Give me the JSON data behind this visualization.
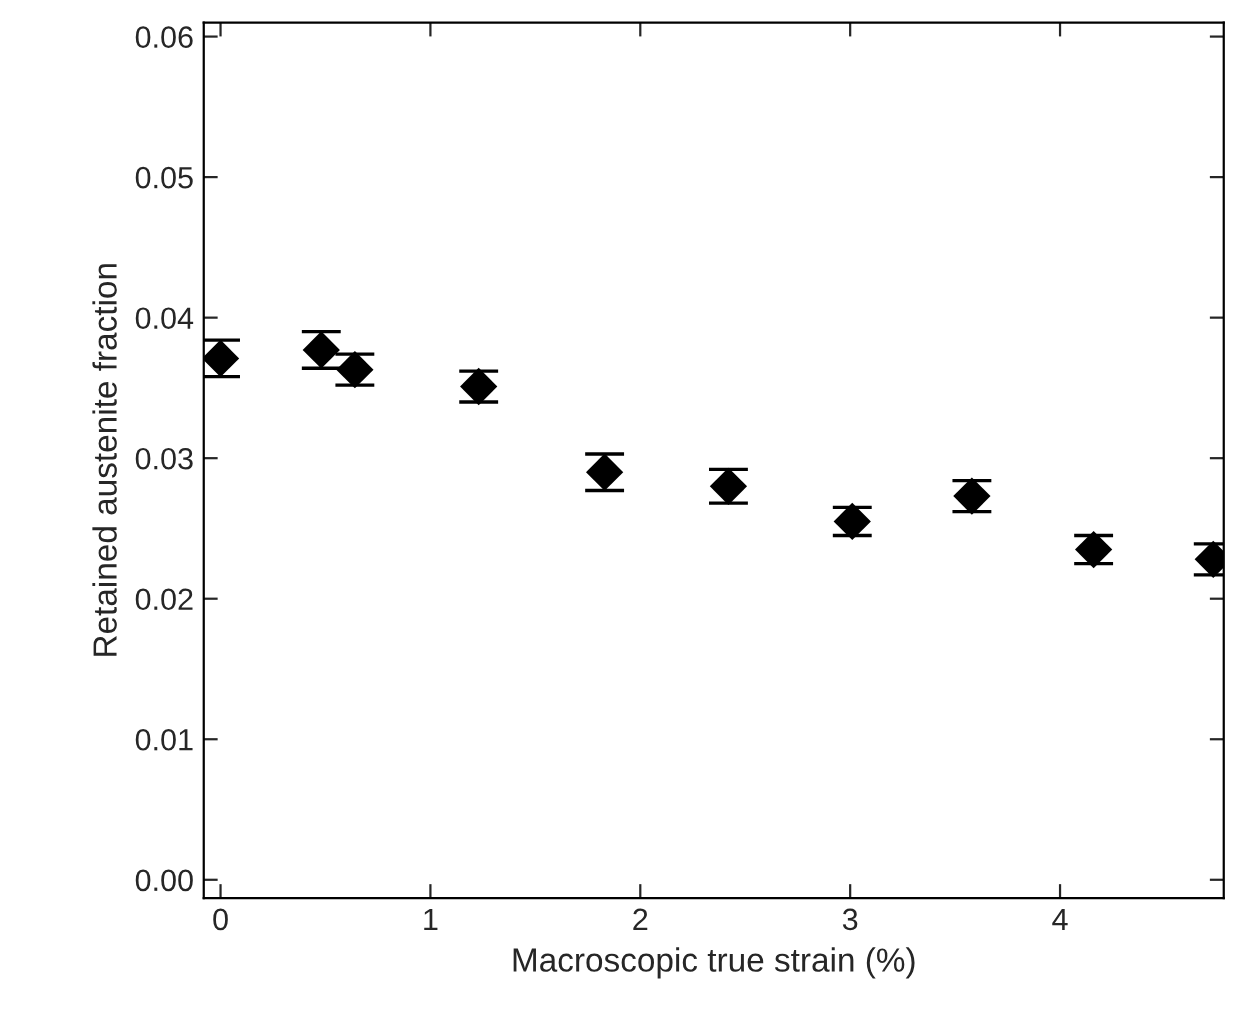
{
  "chart_data": {
    "type": "scatter",
    "xlabel": "Macroscopic true strain (%)",
    "ylabel": "Retained austenite fraction",
    "x": [
      0,
      0.48,
      0.64,
      1.23,
      1.83,
      2.42,
      3.01,
      3.58,
      4.16,
      4.73
    ],
    "series": [
      {
        "color": "#000000",
        "values": [
          0.0371,
          0.0377,
          0.0363,
          0.0351,
          0.029,
          0.028,
          0.0255,
          0.0273,
          0.0235,
          0.0228
        ],
        "errors": [
          0.0013,
          0.0013,
          0.0011,
          0.0011,
          0.0013,
          0.0012,
          0.001,
          0.0011,
          0.001,
          0.0011
        ]
      }
    ],
    "marker": "diamond",
    "xlim": [
      -0.08,
      4.78
    ],
    "ylim": [
      -0.0013,
      0.061
    ],
    "xticks": [
      0,
      1,
      2,
      3,
      4
    ],
    "yticks": [
      {
        "value": 0,
        "label": "0.00"
      },
      0.01,
      0.02,
      0.03,
      0.04,
      0.05,
      0.06
    ],
    "grid": false,
    "legend": false
  }
}
